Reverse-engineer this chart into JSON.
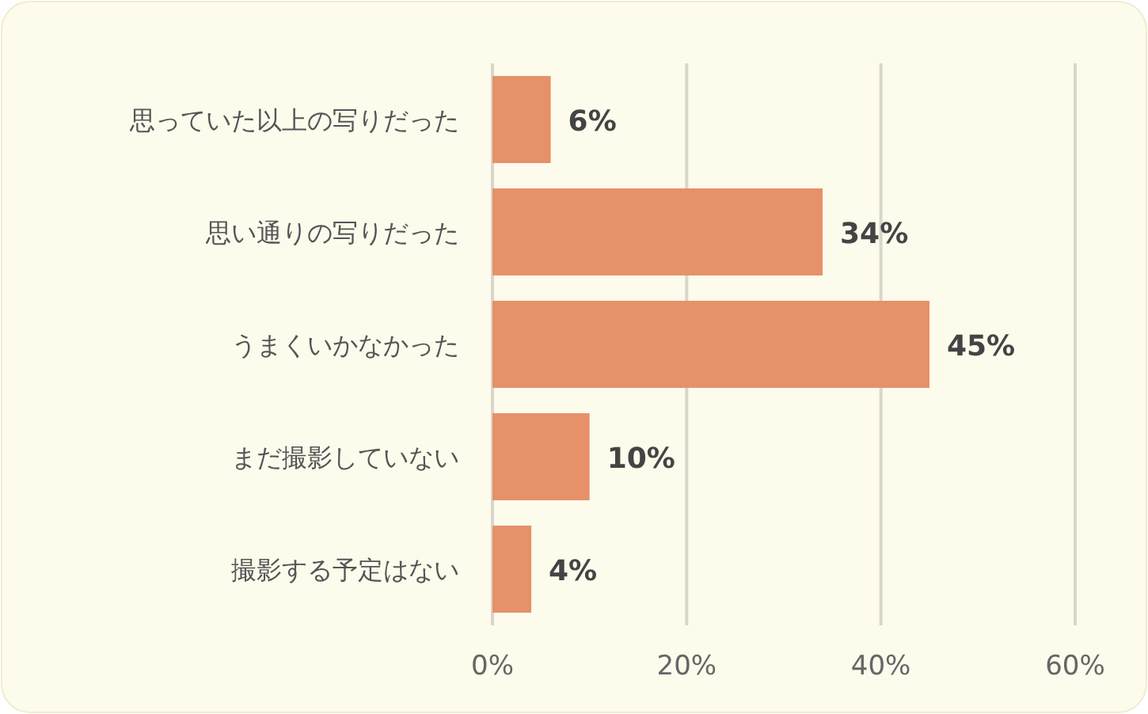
{
  "chart_data": {
    "type": "bar",
    "orientation": "horizontal",
    "categories": [
      "思っていた以上の写りだった",
      "思い通りの写りだった",
      "うまくいかなかった",
      "まだ撮影していない",
      "撮影する予定はない"
    ],
    "values": [
      6,
      34,
      45,
      10,
      4
    ],
    "value_labels": [
      "6%",
      "34%",
      "45%",
      "10%",
      "4%"
    ],
    "color": "#e6916a",
    "xlim": [
      0,
      60
    ],
    "xticks": [
      {
        "value": 0,
        "label": "0%"
      },
      {
        "value": 20,
        "label": "20%"
      },
      {
        "value": 40,
        "label": "40%"
      },
      {
        "value": 60,
        "label": "60%"
      }
    ],
    "grid": "x"
  }
}
